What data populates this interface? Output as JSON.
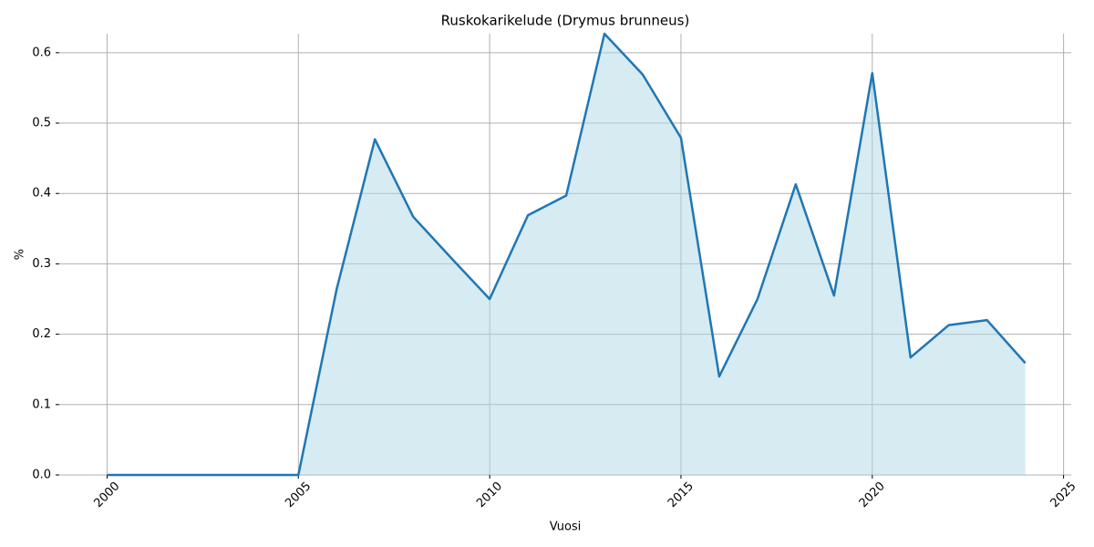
{
  "chart_data": {
    "type": "area",
    "title": "Ruskokarikelude (Drymus brunneus)",
    "x_label": "Vuosi",
    "y_label": "%",
    "x": [
      2000,
      2001,
      2002,
      2003,
      2004,
      2005,
      2006,
      2007,
      2008,
      2009,
      2010,
      2011,
      2012,
      2013,
      2014,
      2015,
      2016,
      2017,
      2018,
      2019,
      2020,
      2021,
      2022,
      2023,
      2024
    ],
    "y": [
      0,
      0,
      0,
      0,
      0,
      0,
      0.264,
      0.477,
      0.367,
      0.308,
      0.25,
      0.369,
      0.397,
      0.627,
      0.569,
      0.479,
      0.14,
      0.25,
      0.413,
      0.255,
      0.571,
      0.167,
      0.213,
      0.22,
      0.159
    ],
    "line_color": "#1f77b4",
    "fill_color": "#add8e6",
    "xlim": [
      1998.75,
      2025.2
    ],
    "ylim": [
      0,
      0.627
    ],
    "xticks": [
      2000,
      2005,
      2010,
      2015,
      2020,
      2025
    ],
    "yticks": [
      {
        "value": 0,
        "label": "0.0"
      },
      0.1,
      0.2,
      0.3,
      0.4,
      0.5,
      0.6
    ],
    "grid": true
  }
}
